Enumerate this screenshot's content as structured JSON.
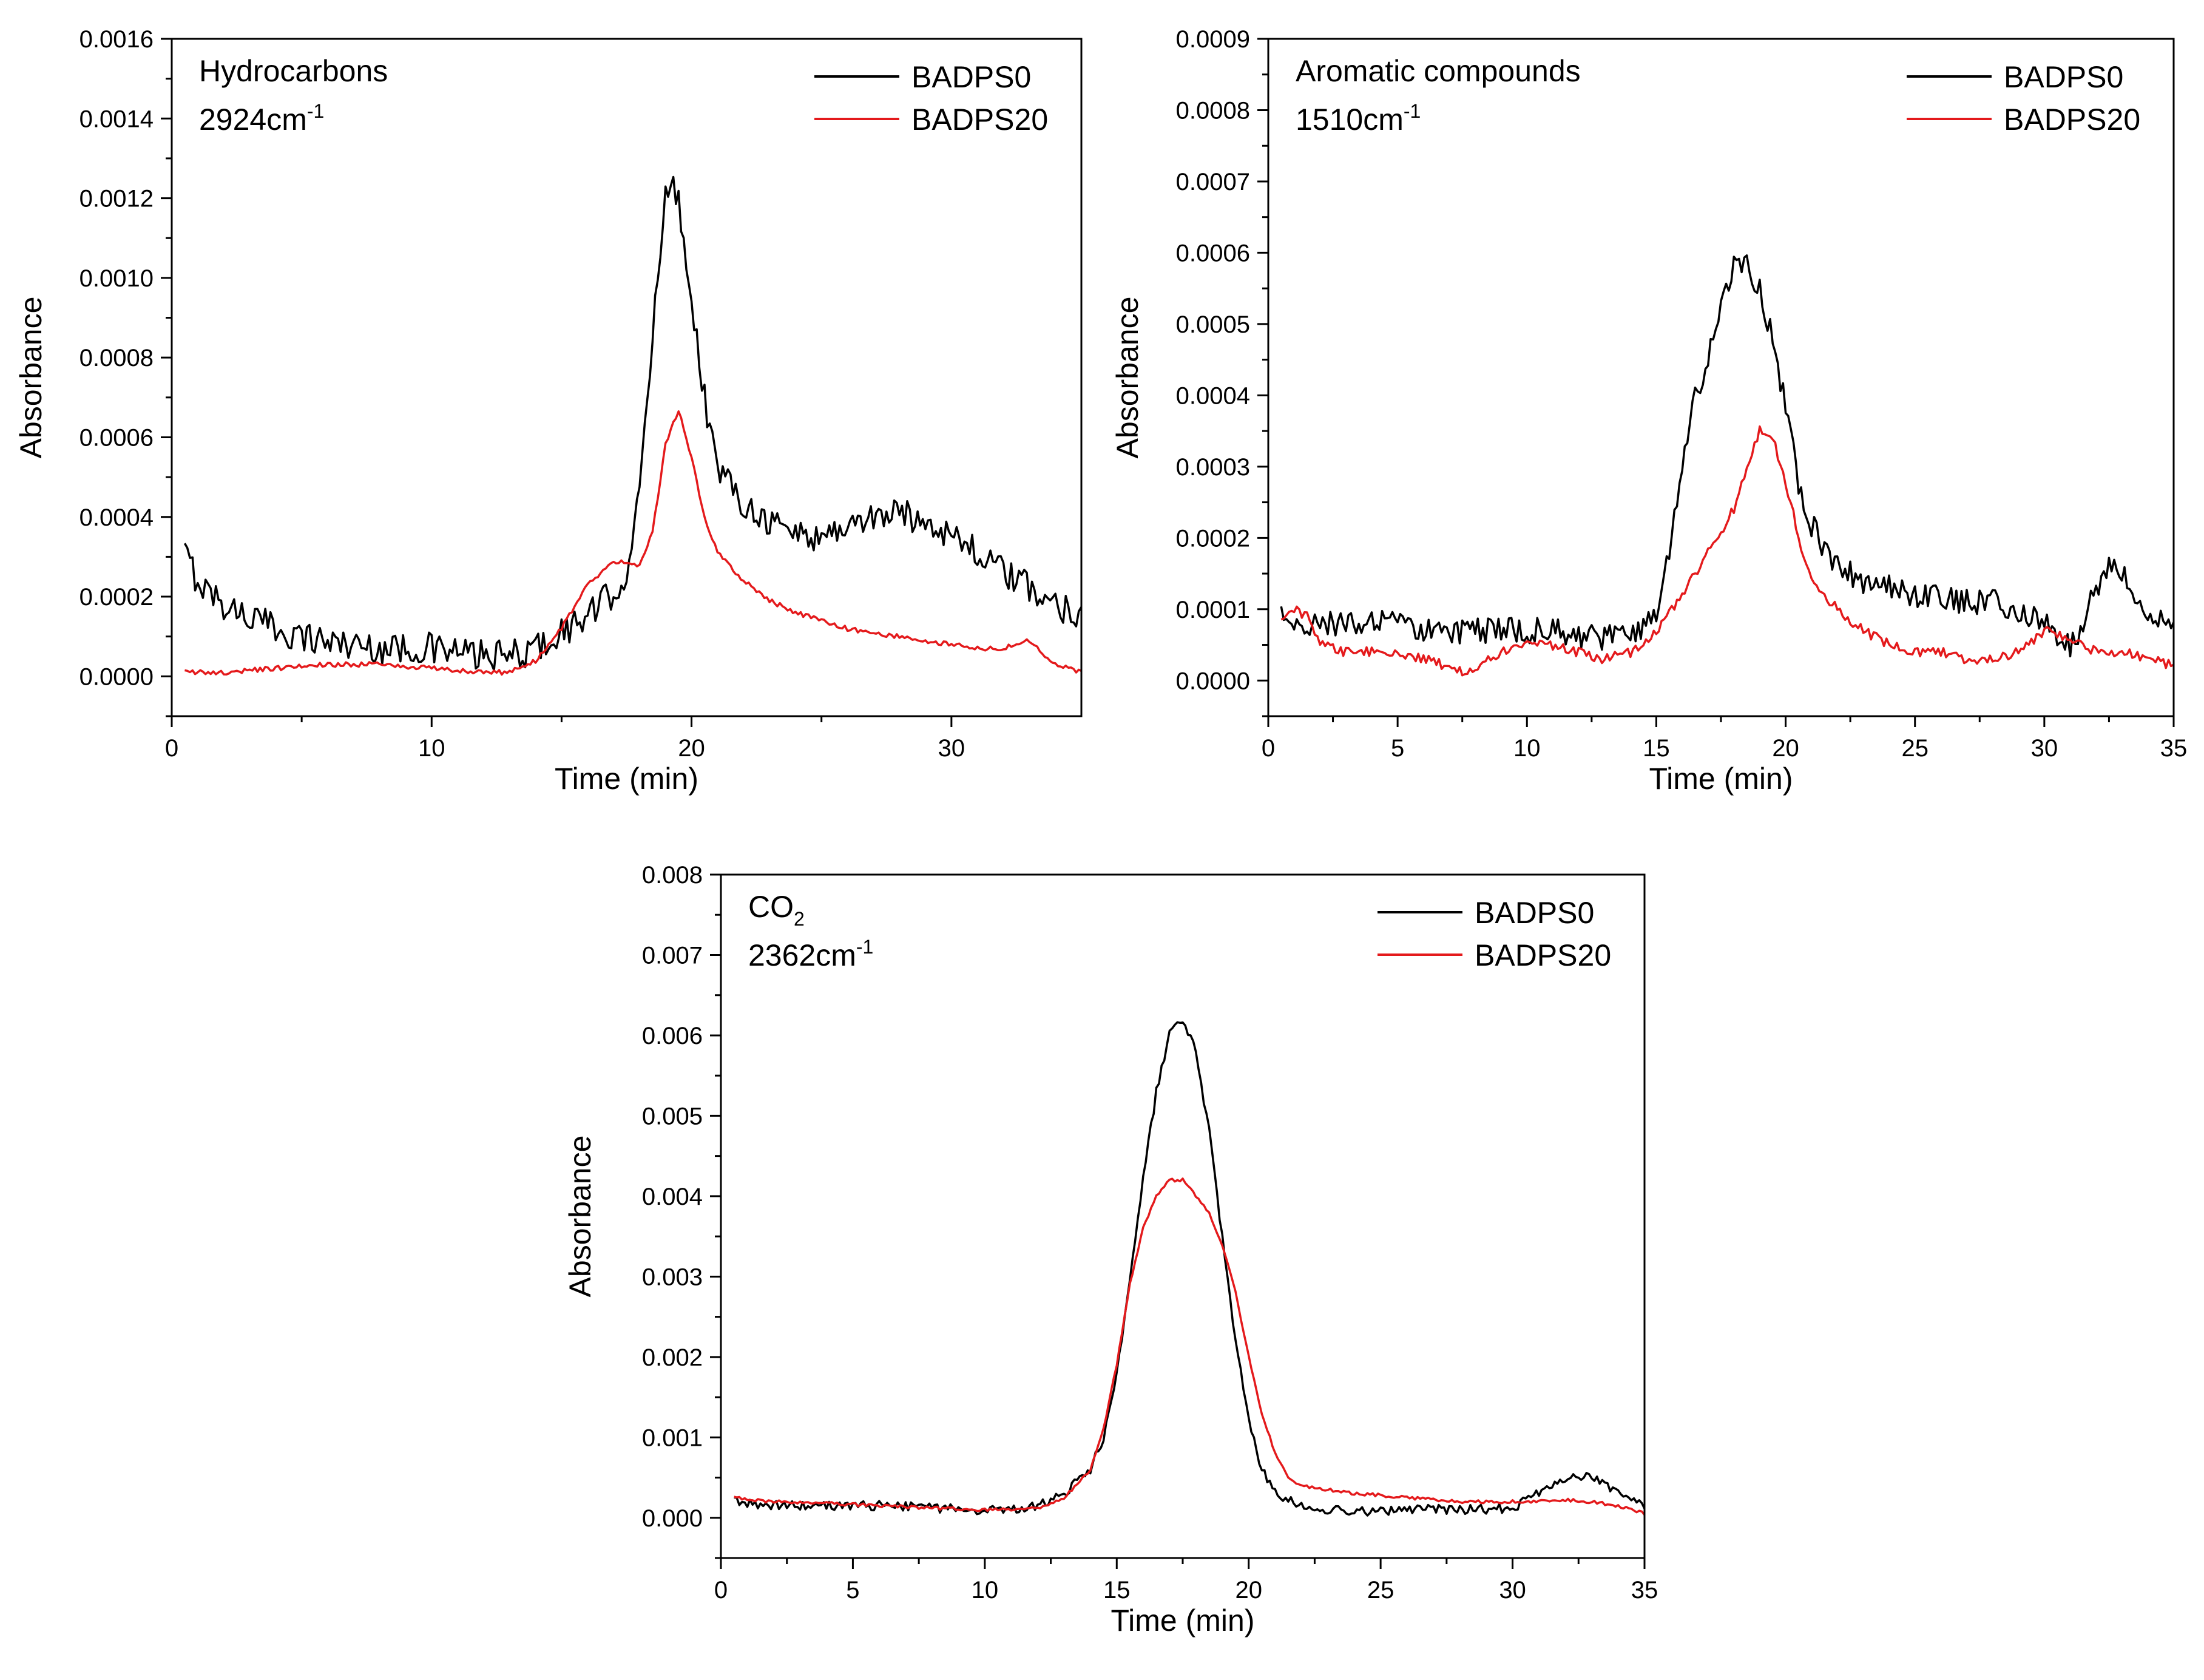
{
  "series_colors": {
    "BADPS0": "#000000",
    "BADPS20": "#e41a1c"
  },
  "chart_data": [
    {
      "id": "hydrocarbons",
      "type": "line",
      "title": "",
      "annotation_lines": [
        {
          "text": "Hydrocarbons",
          "sup": ""
        },
        {
          "text": "2924cm",
          "sup": "-1"
        }
      ],
      "xlabel": "Time (min)",
      "ylabel": "Absorbance",
      "xlim": [
        0,
        35
      ],
      "ylim": [
        -0.0001,
        0.0016
      ],
      "xticks": [
        0,
        10,
        20,
        30
      ],
      "yticks": [
        0.0,
        0.0002,
        0.0004,
        0.0006,
        0.0008,
        0.001,
        0.0012,
        0.0014,
        0.0016
      ],
      "ytick_labels": [
        "0.0000",
        "0.0002",
        "0.0004",
        "0.0006",
        "0.0008",
        "0.0010",
        "0.0012",
        "0.0014",
        "0.0016"
      ],
      "legend": [
        "BADPS0",
        "BADPS20"
      ],
      "legend_position": "top-right",
      "series": [
        {
          "name": "BADPS0",
          "x": [
            0.5,
            1,
            2,
            3,
            4,
            5,
            6,
            7,
            8,
            9,
            10,
            11,
            12,
            13,
            14,
            15,
            16,
            17,
            17.5,
            18,
            18.5,
            19,
            19.5,
            20,
            20.5,
            21,
            22,
            23,
            24,
            25,
            26,
            27,
            28,
            29,
            30,
            31,
            32,
            33,
            34,
            35
          ],
          "y": [
            0.00031,
            0.00024,
            0.00018,
            0.00015,
            0.00012,
            0.0001,
            9e-05,
            8e-05,
            7e-05,
            7e-05,
            7e-05,
            6e-05,
            5e-05,
            5e-05,
            7e-05,
            0.00011,
            0.00015,
            0.00021,
            0.00026,
            0.00045,
            0.00085,
            0.00124,
            0.0012,
            0.00095,
            0.0007,
            0.00052,
            0.00044,
            0.00039,
            0.00036,
            0.00035,
            0.00038,
            0.0004,
            0.00041,
            0.00039,
            0.00036,
            0.00031,
            0.00026,
            0.00022,
            0.00018,
            0.00016
          ],
          "noise": 4e-05
        },
        {
          "name": "BADPS20",
          "x": [
            0.5,
            2,
            4,
            6,
            8,
            10,
            12,
            13,
            14,
            15,
            16,
            17,
            18,
            18.5,
            19,
            19.5,
            20,
            20.5,
            21,
            22,
            23,
            24,
            25,
            26,
            27,
            28,
            29,
            30,
            31,
            32,
            32.5,
            33,
            33.5,
            34,
            35
          ],
          "y": [
            1e-05,
            1e-05,
            2e-05,
            3e-05,
            3e-05,
            2e-05,
            1e-05,
            1e-05,
            4e-05,
            0.00012,
            0.00023,
            0.00029,
            0.00028,
            0.00036,
            0.00058,
            0.00067,
            0.00055,
            0.0004,
            0.00031,
            0.00024,
            0.00019,
            0.00016,
            0.00014,
            0.00012,
            0.00011,
            0.0001,
            9e-05,
            8e-05,
            7e-05,
            7e-05,
            8e-05,
            9e-05,
            6e-05,
            3e-05,
            1e-05
          ],
          "noise": 6e-06
        }
      ]
    },
    {
      "id": "aromatic",
      "type": "line",
      "title": "",
      "annotation_lines": [
        {
          "text": "Aromatic compounds",
          "sup": ""
        },
        {
          "text": "1510cm",
          "sup": "-1"
        }
      ],
      "xlabel": "Time (min)",
      "ylabel": "Absorbance",
      "xlim": [
        0,
        35
      ],
      "ylim": [
        -5e-05,
        0.0009
      ],
      "xticks": [
        0,
        5,
        10,
        15,
        20,
        25,
        30,
        35
      ],
      "yticks": [
        0.0,
        0.0001,
        0.0002,
        0.0003,
        0.0004,
        0.0005,
        0.0006,
        0.0007,
        0.0008,
        0.0009
      ],
      "ytick_labels": [
        "0.0000",
        "0.0001",
        "0.0002",
        "0.0003",
        "0.0004",
        "0.0005",
        "0.0006",
        "0.0007",
        "0.0008",
        "0.0009"
      ],
      "legend": [
        "BADPS0",
        "BADPS20"
      ],
      "legend_position": "top-right",
      "series": [
        {
          "name": "BADPS0",
          "x": [
            0.5,
            1,
            2,
            3,
            4,
            5,
            6,
            7,
            8,
            9,
            10,
            11,
            12,
            13,
            14,
            15,
            15.5,
            16,
            16.5,
            17,
            17.5,
            18,
            18.5,
            19,
            19.5,
            20,
            20.5,
            21,
            21.5,
            22,
            23,
            24,
            25,
            26,
            27,
            28,
            29,
            30,
            30.5,
            31,
            31.5,
            32,
            32.5,
            33,
            34,
            35
          ],
          "y": [
            9e-05,
            8e-05,
            8e-05,
            8e-05,
            8e-05,
            8e-05,
            7e-05,
            7e-05,
            7e-05,
            7e-05,
            7e-05,
            7e-05,
            6e-05,
            6e-05,
            6e-05,
            0.0001,
            0.00018,
            0.0003,
            0.0004,
            0.00045,
            0.00052,
            0.00058,
            0.00058,
            0.00055,
            0.00048,
            0.00038,
            0.00028,
            0.00022,
            0.00018,
            0.00016,
            0.00014,
            0.00013,
            0.00012,
            0.00012,
            0.00011,
            0.00011,
            0.0001,
            8e-05,
            6e-05,
            5e-05,
            8e-05,
            0.00013,
            0.00016,
            0.00015,
            0.0001,
            7e-05
          ],
          "noise": 1.8e-05
        },
        {
          "name": "BADPS20",
          "x": [
            0.5,
            1,
            1.5,
            2,
            3,
            4,
            5,
            6,
            7,
            7.5,
            8,
            9,
            10,
            11,
            12,
            13,
            14,
            15,
            16,
            17,
            18,
            18.5,
            19,
            19.5,
            20,
            20.5,
            21,
            22,
            23,
            24,
            25,
            26,
            27,
            28,
            29,
            30,
            31,
            32,
            33,
            34,
            35
          ],
          "y": [
            8e-05,
            0.0001,
            9e-05,
            5e-05,
            4e-05,
            4e-05,
            4e-05,
            3e-05,
            2e-05,
            1e-05,
            2e-05,
            4e-05,
            5e-05,
            5e-05,
            4e-05,
            3e-05,
            4e-05,
            7e-05,
            0.00012,
            0.00018,
            0.00024,
            0.0003,
            0.00035,
            0.00034,
            0.00028,
            0.0002,
            0.00014,
            0.0001,
            7e-05,
            5e-05,
            4e-05,
            4e-05,
            3e-05,
            3e-05,
            4e-05,
            7e-05,
            6e-05,
            4e-05,
            4e-05,
            3e-05,
            2e-05
          ],
          "noise": 7e-06
        }
      ]
    },
    {
      "id": "co2",
      "type": "line",
      "title": "",
      "annotation_lines": [
        {
          "text": "CO",
          "sub": "2"
        },
        {
          "text": "2362cm",
          "sup": "-1"
        }
      ],
      "xlabel": "Time (min)",
      "ylabel": "Absorbance",
      "xlim": [
        0,
        35
      ],
      "ylim": [
        -0.0005,
        0.008
      ],
      "xticks": [
        0,
        5,
        10,
        15,
        20,
        25,
        30,
        35
      ],
      "yticks": [
        0.0,
        0.001,
        0.002,
        0.003,
        0.004,
        0.005,
        0.006,
        0.007,
        0.008
      ],
      "ytick_labels": [
        "0.000",
        "0.001",
        "0.002",
        "0.003",
        "0.004",
        "0.005",
        "0.006",
        "0.007",
        "0.008"
      ],
      "legend": [
        "BADPS0",
        "BADPS20"
      ],
      "legend_position": "top-right",
      "series": [
        {
          "name": "BADPS0",
          "x": [
            0.5,
            2,
            4,
            6,
            8,
            10,
            11,
            12,
            13,
            14,
            14.5,
            15,
            15.5,
            16,
            16.5,
            17,
            17.5,
            18,
            18.5,
            19,
            19.5,
            20,
            20.5,
            21,
            22,
            23,
            24,
            25,
            26,
            28,
            30,
            31,
            32,
            33,
            34,
            35
          ],
          "y": [
            0.0002,
            0.00015,
            0.00015,
            0.00015,
            0.00012,
            0.0001,
            0.0001,
            0.00015,
            0.0003,
            0.0006,
            0.001,
            0.0018,
            0.003,
            0.0042,
            0.0053,
            0.006,
            0.0062,
            0.0058,
            0.0048,
            0.0035,
            0.0022,
            0.0012,
            0.0006,
            0.0003,
            0.00015,
            0.0001,
            8e-05,
            8e-05,
            0.0001,
            0.0001,
            0.00012,
            0.0003,
            0.0005,
            0.0005,
            0.0003,
            0.00015
          ],
          "noise": 6e-05
        },
        {
          "name": "BADPS20",
          "x": [
            0.5,
            2,
            4,
            6,
            8,
            10,
            11,
            12,
            13,
            14,
            14.5,
            15,
            15.5,
            16,
            16.5,
            17,
            17.5,
            18,
            18.5,
            19,
            19.5,
            20,
            20.5,
            21,
            21.5,
            22,
            23,
            24,
            25,
            26,
            28,
            30,
            31,
            32,
            33,
            34,
            35
          ],
          "y": [
            0.00025,
            0.0002,
            0.00018,
            0.00015,
            0.00012,
            0.0001,
            0.0001,
            0.00012,
            0.00025,
            0.0006,
            0.0011,
            0.0019,
            0.0029,
            0.0036,
            0.004,
            0.0042,
            0.0042,
            0.004,
            0.0038,
            0.0034,
            0.0028,
            0.002,
            0.0013,
            0.0008,
            0.0005,
            0.0004,
            0.00035,
            0.0003,
            0.00028,
            0.00025,
            0.0002,
            0.0002,
            0.0002,
            0.00022,
            0.0002,
            0.00015,
            5e-05
          ],
          "noise": 2e-05
        }
      ]
    }
  ]
}
